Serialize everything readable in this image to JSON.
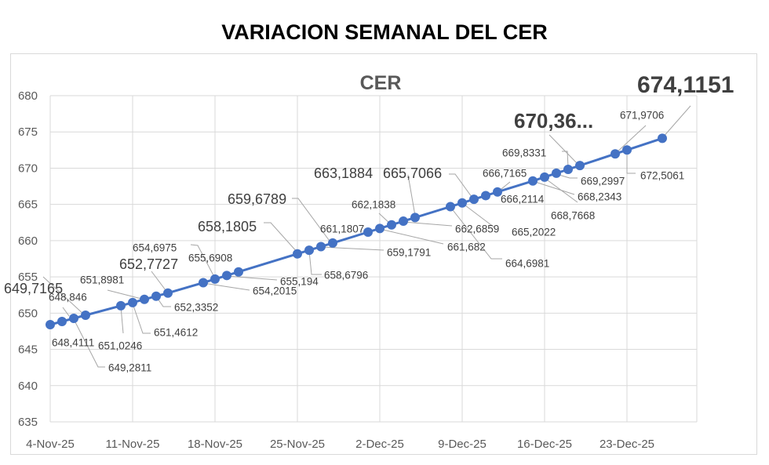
{
  "title": "VARIACION SEMANAL DEL CER",
  "chart_data": {
    "type": "line",
    "title": "CER",
    "xlabel": "",
    "ylabel": "",
    "ylim": [
      635,
      680
    ],
    "yticks": [
      "635",
      "640",
      "645",
      "650",
      "655",
      "660",
      "665",
      "670",
      "675",
      "680"
    ],
    "xticks": [
      "4-Nov-25",
      "11-Nov-25",
      "18-Nov-25",
      "25-Nov-25",
      "2-Dec-25",
      "9-Dec-25",
      "16-Dec-25",
      "23-Dec-25"
    ],
    "grid": true,
    "legend": "none",
    "series_color": "#4472C4",
    "x": [
      "2025-11-04",
      "2025-11-05",
      "2025-11-06",
      "2025-11-07",
      "2025-11-10",
      "2025-11-11",
      "2025-11-12",
      "2025-11-13",
      "2025-11-14",
      "2025-11-17",
      "2025-11-18",
      "2025-11-19",
      "2025-11-20",
      "2025-11-25",
      "2025-11-26",
      "2025-11-27",
      "2025-11-28",
      "2025-12-01",
      "2025-12-02",
      "2025-12-03",
      "2025-12-04",
      "2025-12-05",
      "2025-12-08",
      "2025-12-09",
      "2025-12-10",
      "2025-12-11",
      "2025-12-12",
      "2025-12-15",
      "2025-12-16",
      "2025-12-17",
      "2025-12-18",
      "2025-12-19",
      "2025-12-22",
      "2025-12-23",
      "2025-12-26"
    ],
    "values": [
      648.4111,
      648.846,
      649.2811,
      649.7165,
      651.0246,
      651.4612,
      651.8981,
      652.3352,
      652.7727,
      654.2015,
      654.6975,
      655.194,
      655.6908,
      658.1805,
      658.6796,
      659.1791,
      659.6789,
      661.1807,
      661.682,
      662.1838,
      662.6859,
      663.1884,
      664.6981,
      665.2022,
      665.7066,
      666.2114,
      666.7165,
      668.2343,
      668.7668,
      669.2997,
      669.8331,
      670.36,
      671.9706,
      672.5061,
      674.1151
    ],
    "data_labels": [
      "648,4111",
      "648,846",
      "649,2811",
      "649,7165",
      "651,0246",
      "651,4612",
      "651,8981",
      "652,3352",
      "652,7727",
      "654,2015",
      "654,6975",
      "655,194",
      "655,6908",
      "658,1805",
      "658,6796",
      "659,1791",
      "659,6789",
      "661,1807",
      "661,682",
      "662,1838",
      "662,6859",
      "663,1884",
      "664,6981",
      "665,2022",
      "665,7066",
      "666,2114",
      "666,7165",
      "668,2343",
      "668,7668",
      "669,2997",
      "669,8331",
      "670,36...",
      "671,9706",
      "672,5061",
      "674,1151"
    ]
  }
}
